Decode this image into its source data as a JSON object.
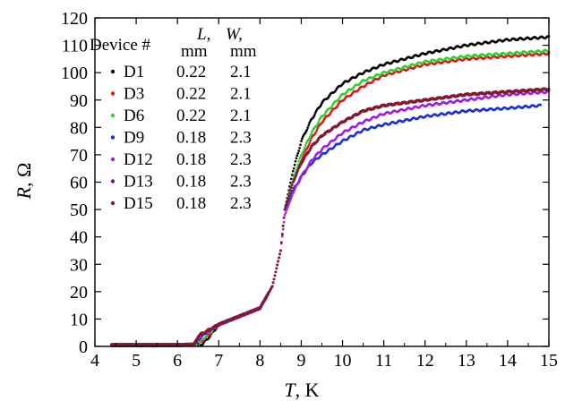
{
  "chart_data": {
    "type": "scatter",
    "xlabel": {
      "symbol": "T",
      "unit": ", K"
    },
    "ylabel": {
      "symbol": "R",
      "unit": ", Ω"
    },
    "xlim": [
      4,
      15
    ],
    "ylim": [
      0,
      120
    ],
    "xticks": [
      4,
      5,
      6,
      7,
      8,
      9,
      10,
      11,
      12,
      13,
      14,
      15
    ],
    "yticks": [
      0,
      10,
      20,
      30,
      40,
      50,
      60,
      70,
      80,
      90,
      100,
      110,
      120
    ],
    "grid": false,
    "legend": {
      "placement": "top-left",
      "header": {
        "device": "Device #",
        "L_symbol": "L,",
        "L_unit": "mm",
        "W_symbol": "W,",
        "W_unit": "mm"
      }
    },
    "series": [
      {
        "name": "D1",
        "L": "0.22",
        "W": "2.1",
        "color": "#000000",
        "tc": 6.9,
        "x": [
          4.4,
          5.0,
          6.0,
          6.6,
          6.8,
          7.0,
          7.5,
          8.0,
          8.3,
          8.5,
          8.6,
          8.8,
          9.0,
          9.25,
          9.5,
          10.0,
          10.5,
          11.0,
          12.0,
          13.0,
          14.0,
          15.0
        ],
        "y": [
          0.5,
          0.5,
          0.5,
          0.7,
          4,
          8,
          11,
          14,
          22,
          35,
          50,
          64,
          75,
          83,
          89,
          96,
          100,
          103,
          107,
          110,
          112,
          113
        ]
      },
      {
        "name": "D3",
        "L": "0.22",
        "W": "2.1",
        "color": "#e8141b",
        "tc": 6.75,
        "x": [
          4.4,
          5.0,
          6.0,
          6.5,
          6.75,
          7.0,
          7.5,
          8.0,
          8.3,
          8.5,
          8.6,
          8.8,
          9.0,
          9.25,
          9.5,
          10.0,
          10.5,
          11.0,
          12.0,
          13.0,
          14.0,
          15.0
        ],
        "y": [
          0.5,
          0.5,
          0.5,
          0.7,
          4,
          8,
          11,
          14,
          22,
          35,
          50,
          60,
          68,
          76,
          82,
          90,
          95,
          99,
          103,
          105,
          106,
          107
        ]
      },
      {
        "name": "D6",
        "L": "0.22",
        "W": "2.1",
        "color": "#2ed12e",
        "tc": 6.7,
        "x": [
          4.4,
          5.0,
          6.0,
          6.5,
          6.7,
          7.0,
          7.5,
          8.0,
          8.3,
          8.5,
          8.6,
          8.8,
          9.0,
          9.25,
          9.5,
          10.0,
          10.5,
          11.0,
          12.0,
          13.0,
          14.0,
          15.0
        ],
        "y": [
          0.5,
          0.5,
          0.5,
          0.7,
          4,
          8,
          11,
          14,
          22,
          35,
          50,
          61,
          70,
          78,
          84,
          92,
          97,
          100,
          104,
          106,
          107,
          108
        ]
      },
      {
        "name": "D9",
        "L": "0.18",
        "W": "2.3",
        "color": "#1a2fe0",
        "tc": 6.6,
        "x": [
          4.4,
          5.0,
          6.0,
          6.4,
          6.6,
          7.0,
          7.5,
          8.0,
          8.3,
          8.5,
          8.6,
          8.8,
          9.0,
          9.25,
          9.5,
          10.0,
          10.5,
          11.0,
          12.0,
          13.0,
          14.0,
          14.8
        ],
        "y": [
          0.5,
          0.5,
          0.5,
          0.7,
          4,
          8,
          11,
          14,
          22,
          35,
          50,
          57,
          62,
          67,
          70,
          75,
          79,
          81,
          84,
          86,
          87,
          88
        ]
      },
      {
        "name": "D12",
        "L": "0.18",
        "W": "2.3",
        "color": "#9b1fe8",
        "tc": 6.6,
        "x": [
          4.4,
          5.0,
          6.0,
          6.4,
          6.6,
          7.0,
          7.5,
          8.0,
          8.3,
          8.5,
          8.6,
          8.8,
          9.0,
          9.25,
          9.5,
          10.0,
          10.5,
          11.0,
          12.0,
          13.0,
          14.0,
          15.0
        ],
        "y": [
          0.5,
          0.5,
          0.5,
          0.7,
          4,
          8,
          11,
          14,
          22,
          35,
          48,
          56,
          62,
          68,
          72,
          78,
          82,
          85,
          88,
          90,
          92,
          93
        ]
      },
      {
        "name": "D13",
        "L": "0.18",
        "W": "2.3",
        "color": "#6a1690",
        "tc": 6.55,
        "x": [
          4.4,
          5.0,
          6.0,
          6.4,
          6.55,
          7.0,
          7.5,
          8.0,
          8.3,
          8.5,
          8.6,
          8.8,
          9.0,
          9.25,
          9.5,
          10.0,
          10.5,
          11.0,
          12.0,
          13.0,
          14.0,
          15.0
        ],
        "y": [
          0.5,
          0.5,
          0.5,
          0.7,
          4,
          8,
          11,
          14,
          22,
          35,
          50,
          60,
          67,
          73,
          77,
          82,
          86,
          88,
          90,
          92,
          93,
          94
        ]
      },
      {
        "name": "D15",
        "L": "0.18",
        "W": "2.3",
        "color": "#8b1a1a",
        "tc": 6.5,
        "x": [
          4.4,
          5.0,
          6.0,
          6.4,
          6.5,
          7.0,
          7.5,
          8.0,
          8.3,
          8.5,
          8.6,
          8.8,
          9.0,
          9.25,
          9.5,
          10.0,
          10.5,
          11.0,
          12.0,
          13.0,
          14.0,
          15.0
        ],
        "y": [
          0.5,
          0.5,
          0.5,
          0.7,
          4,
          8,
          11,
          14,
          22,
          35,
          50,
          60,
          67,
          73,
          77,
          82,
          86,
          88,
          90,
          92,
          93,
          94
        ]
      }
    ]
  }
}
